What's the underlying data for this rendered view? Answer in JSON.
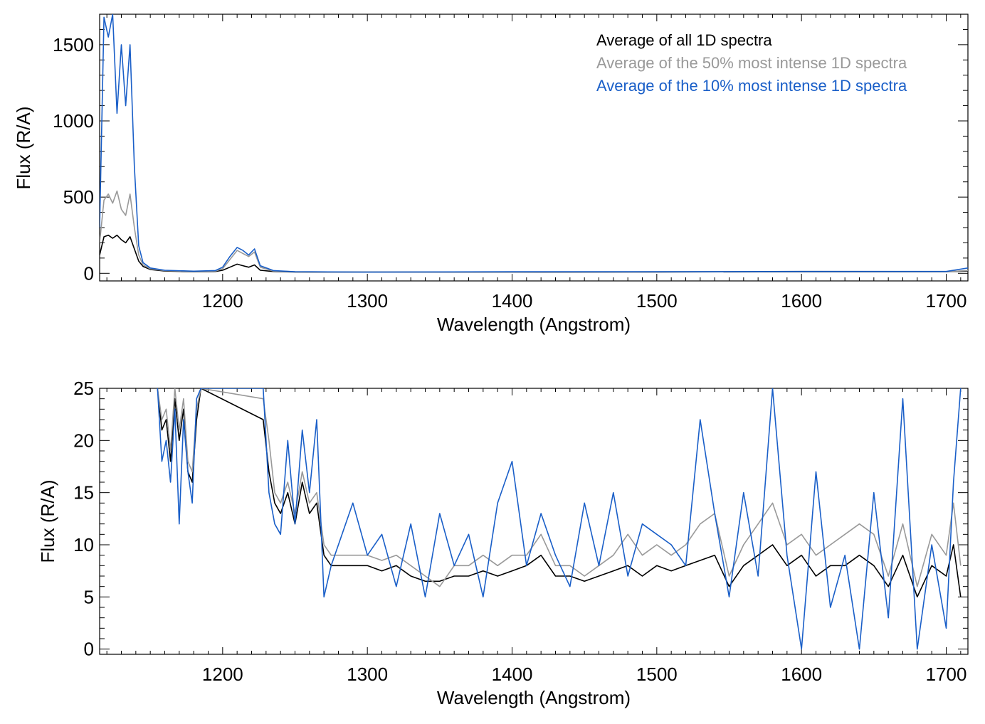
{
  "chart_data": [
    {
      "type": "line",
      "xlabel": "Wavelength (Angstrom)",
      "ylabel": "Flux (R/A)",
      "xlim": [
        1115,
        1715
      ],
      "ylim": [
        -50,
        1700
      ],
      "xticks": [
        1200,
        1300,
        1400,
        1500,
        1600,
        1700
      ],
      "yticks": [
        0,
        500,
        1000,
        1500
      ],
      "legend_position": "top-right",
      "series": [
        {
          "name": "Average of all 1D spectra",
          "color": "#000000",
          "x": [
            1115,
            1118,
            1121,
            1124,
            1127,
            1130,
            1133,
            1136,
            1139,
            1142,
            1145,
            1150,
            1160,
            1180,
            1195,
            1200,
            1205,
            1210,
            1214,
            1218,
            1222,
            1226,
            1235,
            1250,
            1300,
            1400,
            1500,
            1600,
            1700,
            1715
          ],
          "y": [
            120,
            240,
            250,
            230,
            250,
            220,
            200,
            240,
            160,
            80,
            45,
            25,
            15,
            10,
            12,
            20,
            40,
            60,
            50,
            40,
            55,
            20,
            12,
            9,
            8,
            8,
            9,
            10,
            10,
            15
          ]
        },
        {
          "name": "Average of the 50% most intense 1D spectra",
          "color": "#999999",
          "x": [
            1115,
            1118,
            1121,
            1124,
            1127,
            1130,
            1133,
            1136,
            1139,
            1142,
            1145,
            1150,
            1160,
            1180,
            1195,
            1200,
            1205,
            1210,
            1214,
            1218,
            1222,
            1226,
            1235,
            1250,
            1300,
            1400,
            1500,
            1600,
            1700,
            1715
          ],
          "y": [
            200,
            480,
            520,
            460,
            540,
            420,
            380,
            520,
            300,
            120,
            55,
            30,
            18,
            12,
            15,
            30,
            90,
            150,
            130,
            110,
            140,
            40,
            15,
            10,
            8,
            9,
            10,
            12,
            11,
            18
          ]
        },
        {
          "name": "Average of the 10% most intense 1D spectra",
          "color": "#1a5fc8",
          "x": [
            1115,
            1118,
            1121,
            1124,
            1127,
            1130,
            1133,
            1136,
            1139,
            1142,
            1145,
            1150,
            1160,
            1180,
            1195,
            1200,
            1205,
            1210,
            1214,
            1218,
            1222,
            1226,
            1235,
            1250,
            1300,
            1400,
            1500,
            1600,
            1700,
            1715
          ],
          "y": [
            300,
            1680,
            1550,
            1700,
            1050,
            1500,
            1100,
            1500,
            700,
            180,
            70,
            35,
            20,
            14,
            18,
            40,
            110,
            170,
            150,
            120,
            160,
            50,
            18,
            10,
            8,
            10,
            10,
            12,
            12,
            35
          ]
        }
      ]
    },
    {
      "type": "line",
      "xlabel": "Wavelength (Angstrom)",
      "ylabel": "Flux (R/A)",
      "xlim": [
        1115,
        1715
      ],
      "ylim": [
        -0.5,
        25
      ],
      "xticks": [
        1200,
        1300,
        1400,
        1500,
        1600,
        1700
      ],
      "yticks": [
        0,
        5,
        10,
        15,
        20,
        25
      ],
      "series": [
        {
          "name": "Average of all 1D spectra",
          "color": "#000000",
          "x": [
            1155,
            1158,
            1161,
            1164,
            1167,
            1170,
            1173,
            1176,
            1179,
            1182,
            1185,
            1228,
            1232,
            1236,
            1240,
            1245,
            1250,
            1255,
            1260,
            1265,
            1270,
            1275,
            1280,
            1290,
            1300,
            1310,
            1320,
            1330,
            1340,
            1350,
            1360,
            1370,
            1380,
            1390,
            1400,
            1410,
            1420,
            1430,
            1440,
            1450,
            1460,
            1470,
            1480,
            1490,
            1500,
            1510,
            1520,
            1530,
            1540,
            1550,
            1560,
            1570,
            1580,
            1590,
            1600,
            1610,
            1620,
            1630,
            1640,
            1650,
            1660,
            1670,
            1680,
            1690,
            1700,
            1705,
            1710
          ],
          "y": [
            25,
            21,
            22,
            18,
            24,
            20,
            23,
            17,
            16,
            22,
            25,
            22,
            17,
            14,
            13,
            15,
            12,
            16,
            13,
            14,
            9,
            8,
            8,
            8,
            8,
            7.5,
            8,
            7,
            6.5,
            6.5,
            7,
            7,
            7.5,
            7,
            7.5,
            8,
            9,
            7,
            7,
            6.5,
            7,
            7.5,
            8,
            7,
            8,
            7.5,
            8,
            8.5,
            9,
            6,
            8,
            9,
            10,
            8,
            9,
            7,
            8,
            8,
            9,
            8,
            6,
            9,
            5,
            8,
            7,
            10,
            5
          ]
        },
        {
          "name": "Average of the 50% most intense 1D spectra",
          "color": "#999999",
          "x": [
            1155,
            1158,
            1161,
            1164,
            1167,
            1170,
            1173,
            1176,
            1179,
            1182,
            1185,
            1228,
            1232,
            1236,
            1240,
            1245,
            1250,
            1255,
            1260,
            1265,
            1270,
            1275,
            1280,
            1290,
            1300,
            1310,
            1320,
            1330,
            1340,
            1350,
            1360,
            1370,
            1380,
            1390,
            1400,
            1410,
            1420,
            1430,
            1440,
            1450,
            1460,
            1470,
            1480,
            1490,
            1500,
            1510,
            1520,
            1530,
            1540,
            1550,
            1560,
            1570,
            1580,
            1590,
            1600,
            1610,
            1620,
            1630,
            1640,
            1650,
            1660,
            1670,
            1680,
            1690,
            1700,
            1705,
            1710
          ],
          "y": [
            25,
            22,
            23,
            19,
            25,
            21,
            24,
            18,
            17,
            23,
            25,
            24,
            20,
            15,
            14,
            16,
            13,
            17,
            14,
            15,
            10,
            9,
            9,
            9,
            9,
            8.5,
            9,
            8,
            7,
            6,
            8,
            8,
            9,
            8,
            9,
            9,
            11,
            8,
            8,
            7,
            8,
            9,
            11,
            9,
            10,
            9,
            10,
            12,
            13,
            7,
            10,
            12,
            14,
            10,
            11,
            9,
            10,
            11,
            12,
            11,
            7,
            12,
            6,
            11,
            9,
            14,
            8
          ]
        },
        {
          "name": "Average of the 10% most intense 1D spectra",
          "color": "#1a5fc8",
          "x": [
            1155,
            1158,
            1161,
            1164,
            1167,
            1170,
            1173,
            1176,
            1179,
            1182,
            1185,
            1228,
            1232,
            1236,
            1240,
            1245,
            1250,
            1255,
            1260,
            1265,
            1270,
            1275,
            1280,
            1290,
            1300,
            1310,
            1320,
            1330,
            1340,
            1350,
            1360,
            1370,
            1380,
            1390,
            1400,
            1410,
            1420,
            1430,
            1440,
            1450,
            1460,
            1470,
            1480,
            1490,
            1500,
            1510,
            1520,
            1530,
            1540,
            1550,
            1560,
            1570,
            1580,
            1590,
            1600,
            1610,
            1620,
            1630,
            1640,
            1650,
            1660,
            1670,
            1680,
            1690,
            1700,
            1705,
            1710
          ],
          "y": [
            25,
            18,
            20,
            16,
            23,
            12,
            22,
            17,
            14,
            24,
            25,
            25,
            15,
            12,
            11,
            20,
            12,
            21,
            15,
            22,
            5,
            8,
            10,
            14,
            9,
            11,
            6,
            12,
            5,
            13,
            8,
            11,
            5,
            14,
            18,
            8,
            13,
            9,
            6,
            14,
            8,
            15,
            7,
            12,
            11,
            10,
            8,
            22,
            13,
            5,
            15,
            7,
            25,
            9,
            0,
            17,
            4,
            9,
            0,
            15,
            3,
            24,
            0,
            10,
            2,
            16,
            25
          ]
        }
      ]
    }
  ]
}
